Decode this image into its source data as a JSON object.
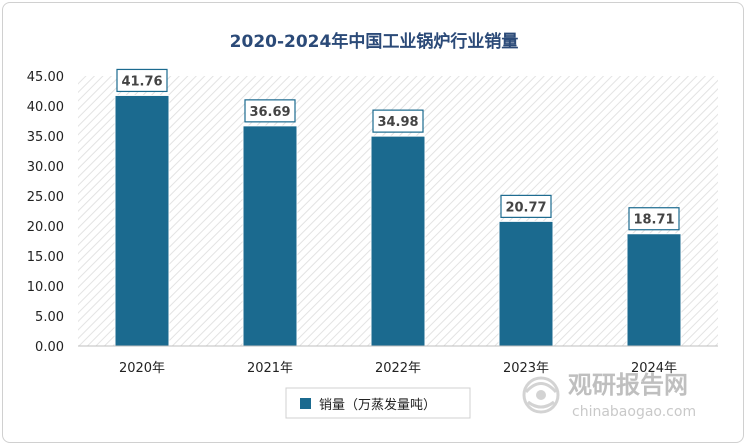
{
  "chart_data": {
    "type": "bar",
    "title": "2020-2024年中国工业锅炉行业销量",
    "categories": [
      "2020年",
      "2021年",
      "2022年",
      "2023年",
      "2024年"
    ],
    "series": [
      {
        "name": "销量（万蒸发量吨）",
        "values": [
          41.76,
          36.69,
          34.98,
          20.77,
          18.71
        ]
      }
    ],
    "value_labels": [
      "41.76",
      "36.69",
      "34.98",
      "20.77",
      "18.71"
    ],
    "yticks": [
      "0.00",
      "5.00",
      "10.00",
      "15.00",
      "20.00",
      "25.00",
      "30.00",
      "35.00",
      "40.00",
      "45.00"
    ],
    "ylim": [
      0,
      45
    ],
    "xlabel": "",
    "ylabel": "",
    "legend_position": "bottom",
    "bar_color": "#1b6a8f",
    "grid": false
  },
  "watermark": {
    "text": "观研报告网",
    "url": "chinabaogao.com",
    "icon": "globe-logo-icon"
  }
}
